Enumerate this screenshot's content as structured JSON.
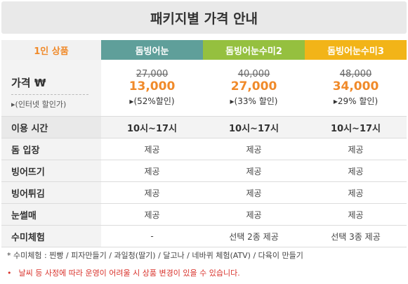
{
  "title": "패키지별 가격 안내",
  "header": {
    "label": "1인 상품",
    "packages": [
      "돔빙어눈",
      "돔빙어눈수미2",
      "돔빙어눈수미3"
    ]
  },
  "price": {
    "label": "가격 ₩",
    "sub_label": "▸(인터넷 할인가)",
    "items": [
      {
        "original": "27,000",
        "sale": "13,000",
        "discount": "▸(52%할인)"
      },
      {
        "original": "40,000",
        "sale": "27,000",
        "discount": "▸(33% 할인)"
      },
      {
        "original": "48,000",
        "sale": "34,000",
        "discount": "▸29% 할인)"
      }
    ]
  },
  "rows": [
    {
      "label": "이용 시간",
      "values": [
        "10시~17시",
        "10시~17시",
        "10시~17시"
      ]
    },
    {
      "label": "돔 입장",
      "values": [
        "제공",
        "제공",
        "제공"
      ]
    },
    {
      "label": "빙어뜨기",
      "values": [
        "제공",
        "제공",
        "제공"
      ]
    },
    {
      "label": "빙어튀김",
      "values": [
        "제공",
        "제공",
        "제공"
      ]
    },
    {
      "label": "눈썰매",
      "values": [
        "제공",
        "제공",
        "제공"
      ]
    },
    {
      "label": "수미체험",
      "values": [
        "-",
        "선택 2종 제공",
        "선택 3종 제공"
      ]
    }
  ],
  "notes": {
    "activities": "* 수미체험 : 찐빵 / 피자만들기 / 과일청(딸기) / 달고나 / 네바퀴 체험(ATV) / 다육이 만들기",
    "bullet": "•",
    "warning": "날씨 등 사정에 따라 운영이 어려울 시 상품 변경이 있을 수 있습니다."
  },
  "colors": {
    "pkg1": "#5f9f9a",
    "pkg2": "#95c03f",
    "pkg3": "#f2b418",
    "accent": "#f08a2a",
    "warning": "#d9322b"
  }
}
